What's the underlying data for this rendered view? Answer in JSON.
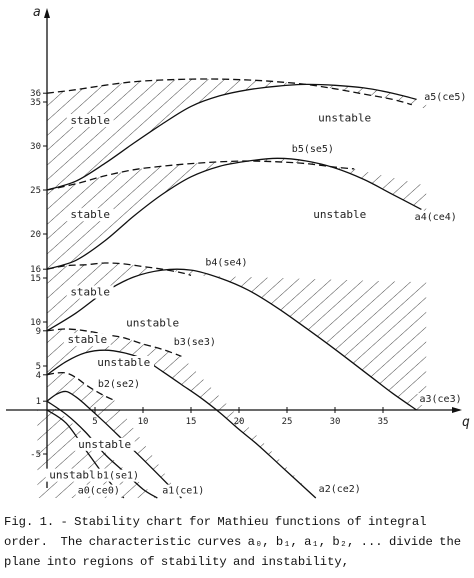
{
  "chart_data": {
    "type": "line",
    "title": "",
    "xlabel": "q",
    "ylabel": "a",
    "xlim": [
      -1,
      40
    ],
    "ylim": [
      -10,
      38
    ],
    "x_ticks": [
      {
        "value": 5,
        "label": "5"
      },
      {
        "value": 10,
        "label": "10"
      },
      {
        "value": 15,
        "label": "15"
      },
      {
        "value": 20,
        "label": "20"
      },
      {
        "value": 25,
        "label": "25"
      },
      {
        "value": 30,
        "label": "30"
      },
      {
        "value": 35,
        "label": "35"
      }
    ],
    "y_ticks": [
      {
        "value": 36,
        "label": "36"
      },
      {
        "value": 35,
        "label": "35"
      },
      {
        "value": 30,
        "label": "30"
      },
      {
        "value": 25,
        "label": "25"
      },
      {
        "value": 20,
        "label": "20"
      },
      {
        "value": 16,
        "label": "16"
      },
      {
        "value": 15,
        "label": "15"
      },
      {
        "value": 10,
        "label": "10"
      },
      {
        "value": 9,
        "label": "9"
      },
      {
        "value": 5,
        "label": "5"
      },
      {
        "value": 4,
        "label": "4"
      },
      {
        "value": 1,
        "label": "1"
      },
      {
        "value": -5,
        "label": "-5"
      }
    ],
    "series": [
      {
        "name": "a0(ce0)",
        "style": "solid",
        "points": [
          [
            0,
            0
          ],
          [
            2,
            -1.5
          ],
          [
            4,
            -4.5
          ],
          [
            6,
            -7.5
          ],
          [
            8,
            -10
          ]
        ]
      },
      {
        "name": "b1(se1)",
        "style": "solid",
        "points": [
          [
            0,
            1
          ],
          [
            2,
            -0.5
          ],
          [
            4,
            -2.5
          ],
          [
            6,
            -5
          ],
          [
            8,
            -7
          ],
          [
            10,
            -9
          ],
          [
            11.5,
            -10
          ]
        ]
      },
      {
        "name": "a1(ce1)",
        "style": "solid",
        "points": [
          [
            0,
            1
          ],
          [
            1,
            1.8
          ],
          [
            2,
            2.1
          ],
          [
            3,
            1.5
          ],
          [
            4,
            0.6
          ],
          [
            6,
            -1.4
          ],
          [
            8,
            -3.5
          ],
          [
            10,
            -5.6
          ],
          [
            12,
            -7.8
          ],
          [
            14,
            -10
          ]
        ]
      },
      {
        "name": "b2(se2)",
        "style": "dashed",
        "points": [
          [
            0,
            4
          ],
          [
            1,
            4.2
          ],
          [
            2,
            4.2
          ],
          [
            3,
            3.7
          ],
          [
            4,
            2.9
          ],
          [
            5,
            2.2
          ],
          [
            6,
            1.6
          ],
          [
            7,
            1.1
          ]
        ]
      },
      {
        "name": "a2(ce2)",
        "style": "solid",
        "points": [
          [
            0,
            4
          ],
          [
            2,
            5.5
          ],
          [
            4,
            6.5
          ],
          [
            6,
            6.8
          ],
          [
            8,
            6.5
          ],
          [
            10,
            5.8
          ],
          [
            12,
            4.4
          ],
          [
            14,
            2.9
          ],
          [
            16,
            1.4
          ],
          [
            18,
            -0.3
          ],
          [
            20,
            -2.2
          ],
          [
            22,
            -4
          ],
          [
            24,
            -6
          ],
          [
            26,
            -8
          ],
          [
            28,
            -10
          ]
        ]
      },
      {
        "name": "b3(se3)",
        "style": "dashed",
        "points": [
          [
            0,
            9
          ],
          [
            2,
            9.2
          ],
          [
            4,
            9
          ],
          [
            6,
            8.6
          ],
          [
            8,
            8.2
          ],
          [
            10,
            7.5
          ],
          [
            12,
            6.9
          ],
          [
            14,
            6.1
          ]
        ]
      },
      {
        "name": "a3(ce3)",
        "style": "solid",
        "points": [
          [
            0,
            9
          ],
          [
            3,
            11
          ],
          [
            6,
            13.4
          ],
          [
            9,
            15.1
          ],
          [
            12,
            15.9
          ],
          [
            15,
            15.9
          ],
          [
            18,
            15
          ],
          [
            21,
            13.6
          ],
          [
            24,
            11.6
          ],
          [
            27,
            9.3
          ],
          [
            30,
            6.9
          ],
          [
            33,
            4.4
          ],
          [
            36,
            1.9
          ],
          [
            38.5,
            0
          ]
        ]
      },
      {
        "name": "b4(se4)",
        "style": "dashed",
        "points": [
          [
            0,
            16
          ],
          [
            2,
            16.4
          ],
          [
            4,
            16.5
          ],
          [
            6,
            16.7
          ],
          [
            8,
            16.6
          ],
          [
            10,
            16.3
          ],
          [
            12,
            16
          ],
          [
            14,
            15.6
          ],
          [
            15,
            15.3
          ]
        ]
      },
      {
        "name": "a4(ce4)",
        "style": "solid",
        "points": [
          [
            0,
            16
          ],
          [
            3,
            17
          ],
          [
            6,
            19.2
          ],
          [
            9,
            22
          ],
          [
            12,
            24.5
          ],
          [
            15,
            26.5
          ],
          [
            18,
            27.7
          ],
          [
            21,
            28.3
          ],
          [
            24,
            28.6
          ],
          [
            27,
            28.3
          ],
          [
            30,
            27.5
          ],
          [
            33,
            26.2
          ],
          [
            36,
            24.5
          ],
          [
            39,
            22.8
          ]
        ]
      },
      {
        "name": "b5(se5)",
        "style": "dashed",
        "points": [
          [
            0,
            25
          ],
          [
            3,
            25.7
          ],
          [
            6,
            26.6
          ],
          [
            9,
            27.3
          ],
          [
            12,
            27.7
          ],
          [
            15,
            28
          ],
          [
            18,
            28.2
          ],
          [
            21,
            28.3
          ],
          [
            24,
            28.2
          ],
          [
            27,
            28
          ],
          [
            30,
            27.6
          ],
          [
            32,
            27.4
          ]
        ]
      },
      {
        "name": "a5(ce5)",
        "style": "solid",
        "points": [
          [
            0,
            25
          ],
          [
            3,
            26
          ],
          [
            6,
            28
          ],
          [
            9,
            30.3
          ],
          [
            12,
            32.5
          ],
          [
            15,
            34.5
          ],
          [
            18,
            35.7
          ],
          [
            21,
            36.4
          ],
          [
            24,
            36.8
          ],
          [
            27,
            37
          ],
          [
            30,
            36.9
          ],
          [
            33,
            36.6
          ],
          [
            36,
            36
          ],
          [
            38.5,
            35.3
          ]
        ]
      },
      {
        "name": "",
        "style": "dashed",
        "points": [
          [
            0,
            36
          ],
          [
            3,
            36.4
          ],
          [
            6,
            36.9
          ],
          [
            9,
            37.3
          ],
          [
            12,
            37.5
          ],
          [
            15,
            37.6
          ],
          [
            18,
            37.6
          ],
          [
            21,
            37.5
          ],
          [
            24,
            37.3
          ],
          [
            27,
            37
          ],
          [
            30,
            36.5
          ],
          [
            33,
            35.9
          ],
          [
            36,
            35.3
          ],
          [
            38,
            34.7
          ]
        ]
      }
    ],
    "region_labels": [
      {
        "text": "stable",
        "x": 4.5,
        "y": 32.5
      },
      {
        "text": "unstable",
        "x": 31,
        "y": 32.8
      },
      {
        "text": "stable",
        "x": 4.5,
        "y": 21.8
      },
      {
        "text": "unstable",
        "x": 30.5,
        "y": 21.8
      },
      {
        "text": "stable",
        "x": 4.5,
        "y": 13
      },
      {
        "text": "unstable",
        "x": 11,
        "y": 9.5
      },
      {
        "text": "stable",
        "x": 4.2,
        "y": 7.6
      },
      {
        "text": "unstable",
        "x": 8,
        "y": 5
      },
      {
        "text": "unstable",
        "x": 6,
        "y": -4.3
      },
      {
        "text": "unstable",
        "x": 3,
        "y": -7.8
      }
    ],
    "curve_labels": [
      {
        "text": "a5(ce5)",
        "x": 39.3,
        "y": 35.2
      },
      {
        "text": "b5(se5)",
        "x": 25.5,
        "y": 29.3
      },
      {
        "text": "a4(ce4)",
        "x": 38.3,
        "y": 21.6
      },
      {
        "text": "b4(se4)",
        "x": 16.5,
        "y": 16.4
      },
      {
        "text": "b3(se3)",
        "x": 13.2,
        "y": 7.4
      },
      {
        "text": "b2(se2)",
        "x": 5.3,
        "y": 2.6
      },
      {
        "text": "a3(ce3)",
        "x": 38.8,
        "y": 0.9
      },
      {
        "text": "b1(se1)",
        "x": 5.2,
        "y": -7.8
      },
      {
        "text": "a0(ce0)",
        "x": 3.2,
        "y": -9.5
      },
      {
        "text": "a1(ce1)",
        "x": 12,
        "y": -9.5
      },
      {
        "text": "a2(ce2)",
        "x": 28.3,
        "y": -9.3
      }
    ],
    "grid": false,
    "legend": "none"
  },
  "caption": "Fig. 1. - Stability chart for Mathieu functions of integral order.  The characteristic curves a₀, b₁, a₁, b₂, ... divide the plane into regions of stability and instability,"
}
